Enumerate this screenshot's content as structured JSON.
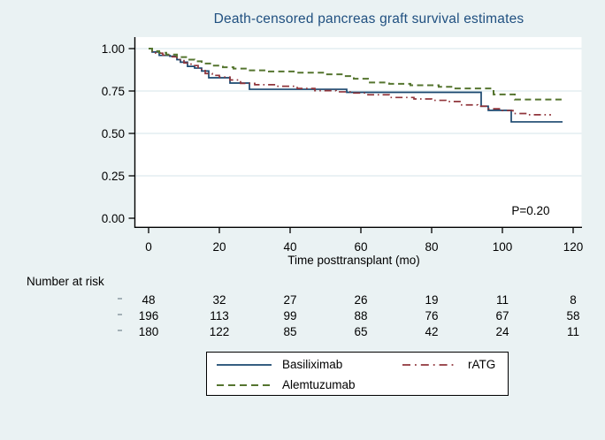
{
  "chart_data": {
    "type": "line",
    "subtype": "kaplan_meier_step_survival",
    "title": "Death-censored pancreas graft survival estimates",
    "xlabel": "Time posttransplant (mo)",
    "ylabel": "",
    "xlim": [
      0,
      120
    ],
    "ylim": [
      0.0,
      1.0
    ],
    "x_ticks": [
      0,
      20,
      40,
      60,
      80,
      100,
      120
    ],
    "y_tick_labels": [
      "0.00",
      "0.25",
      "0.50",
      "0.75",
      "1.00"
    ],
    "grid": "horizontal",
    "legend_position": "bottom",
    "annotation": "P=0.20",
    "series": [
      {
        "name": "Basiliximab",
        "color": "#1a476f",
        "line_style": "solid",
        "points": [
          [
            0,
            1.0
          ],
          [
            1,
            0.98
          ],
          [
            3,
            0.96
          ],
          [
            6,
            0.955
          ],
          [
            8,
            0.935
          ],
          [
            9,
            0.92
          ],
          [
            11,
            0.895
          ],
          [
            13,
            0.885
          ],
          [
            15,
            0.868
          ],
          [
            17,
            0.828
          ],
          [
            23,
            0.797
          ],
          [
            28.5,
            0.76
          ],
          [
            56,
            0.742
          ],
          [
            94,
            0.66
          ],
          [
            96,
            0.636
          ],
          [
            102.5,
            0.568
          ],
          [
            117,
            0.568
          ]
        ]
      },
      {
        "name": "rATG",
        "color": "#90353b",
        "line_style": "dash-dot",
        "points": [
          [
            0,
            1.0
          ],
          [
            1,
            0.985
          ],
          [
            2,
            0.973
          ],
          [
            4,
            0.962
          ],
          [
            6,
            0.952
          ],
          [
            8,
            0.935
          ],
          [
            10,
            0.915
          ],
          [
            12,
            0.9
          ],
          [
            14,
            0.878
          ],
          [
            16,
            0.853
          ],
          [
            18,
            0.842
          ],
          [
            20,
            0.832
          ],
          [
            23,
            0.815
          ],
          [
            26,
            0.795
          ],
          [
            30,
            0.787
          ],
          [
            36,
            0.778
          ],
          [
            42,
            0.765
          ],
          [
            47,
            0.752
          ],
          [
            53,
            0.745
          ],
          [
            58,
            0.738
          ],
          [
            62,
            0.728
          ],
          [
            68,
            0.712
          ],
          [
            75,
            0.703
          ],
          [
            80,
            0.695
          ],
          [
            84,
            0.688
          ],
          [
            88,
            0.668
          ],
          [
            93,
            0.66
          ],
          [
            96,
            0.645
          ],
          [
            100,
            0.635
          ],
          [
            103,
            0.617
          ],
          [
            107,
            0.61
          ],
          [
            113.5,
            0.605
          ]
        ]
      },
      {
        "name": "Alemtuzumab",
        "color": "#55752f",
        "line_style": "dash",
        "points": [
          [
            0,
            1.0
          ],
          [
            1,
            0.985
          ],
          [
            3,
            0.975
          ],
          [
            5,
            0.965
          ],
          [
            8,
            0.95
          ],
          [
            11,
            0.935
          ],
          [
            13,
            0.925
          ],
          [
            15,
            0.912
          ],
          [
            18,
            0.9
          ],
          [
            21,
            0.89
          ],
          [
            24,
            0.882
          ],
          [
            28,
            0.872
          ],
          [
            34,
            0.865
          ],
          [
            42,
            0.858
          ],
          [
            50,
            0.848
          ],
          [
            55,
            0.838
          ],
          [
            58,
            0.822
          ],
          [
            62,
            0.8
          ],
          [
            68,
            0.792
          ],
          [
            74,
            0.784
          ],
          [
            82,
            0.775
          ],
          [
            86,
            0.765
          ],
          [
            97.5,
            0.73
          ],
          [
            103.5,
            0.7
          ],
          [
            117,
            0.7
          ]
        ]
      }
    ]
  },
  "risk_table": {
    "title": "Number at risk",
    "time_points": [
      0,
      20,
      40,
      60,
      80,
      100,
      120
    ],
    "rows": [
      {
        "values": [
          "48",
          "32",
          "27",
          "26",
          "19",
          "11",
          "8"
        ]
      },
      {
        "values": [
          "196",
          "113",
          "99",
          "88",
          "76",
          "67",
          "58"
        ]
      },
      {
        "values": [
          "180",
          "122",
          "85",
          "65",
          "42",
          "24",
          "11"
        ]
      }
    ]
  },
  "colors": {
    "background": "#eaf2f3",
    "plot_background": "#ffffff",
    "grid_line": "#dde9ed",
    "axis": "#000000",
    "title_text": "#205080",
    "text": "#000000",
    "legend_border": "#000000",
    "risk_row_marker": "#a3b0b6"
  }
}
